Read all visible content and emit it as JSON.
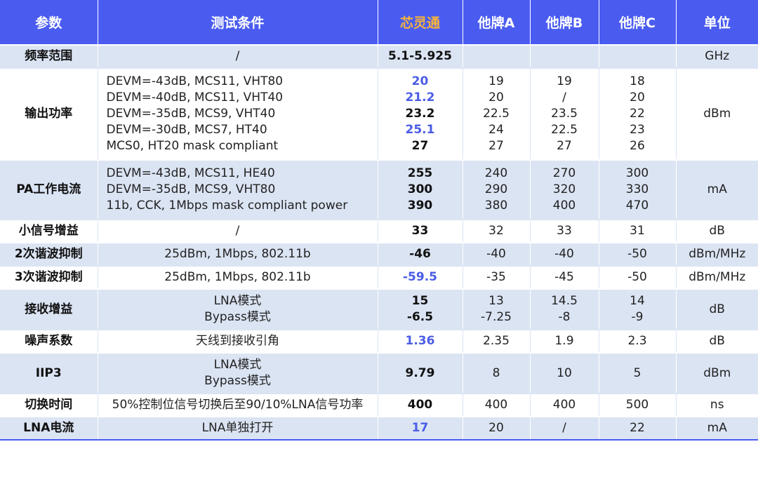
{
  "headers": [
    "参数",
    "测试条件",
    "芯灵通",
    "他牌A",
    "他牌B",
    "他牌C",
    "单位"
  ],
  "rows": [
    {
      "param": "频率范围",
      "cond": [
        "/"
      ],
      "ours": [
        {
          "v": "5.1-5.925",
          "blue": false
        }
      ],
      "a": [
        ""
      ],
      "b": [
        ""
      ],
      "c": [
        ""
      ],
      "unit": "GHz"
    },
    {
      "param": "输出功率",
      "cond": [
        "DEVM=-43dB, MCS11, VHT80",
        "DEVM=-40dB, MCS11, VHT40",
        "DEVM=-35dB, MCS9, VHT40",
        "DEVM=-30dB, MCS7, HT40",
        "MCS0, HT20 mask compliant"
      ],
      "ours": [
        {
          "v": "20",
          "blue": true
        },
        {
          "v": "21.2",
          "blue": true
        },
        {
          "v": "23.2",
          "blue": false
        },
        {
          "v": "25.1",
          "blue": true
        },
        {
          "v": "27",
          "blue": false
        }
      ],
      "a": [
        "19",
        "20",
        "22.5",
        "24",
        "27"
      ],
      "b": [
        "19",
        "/",
        "23.5",
        "22.5",
        "27"
      ],
      "c": [
        "18",
        "20",
        "22",
        "23",
        "26"
      ],
      "unit": "dBm"
    },
    {
      "param": "PA工作电流",
      "cond": [
        "DEVM=-43dB, MCS11, HE40",
        "DEVM=-35dB, MCS9, VHT80",
        "11b, CCK, 1Mbps mask compliant power"
      ],
      "ours": [
        {
          "v": "255",
          "blue": false
        },
        {
          "v": "300",
          "blue": false
        },
        {
          "v": "390",
          "blue": false
        }
      ],
      "a": [
        "240",
        "290",
        "380"
      ],
      "b": [
        "270",
        "320",
        "400"
      ],
      "c": [
        "300",
        "330",
        "470"
      ],
      "unit": "mA"
    },
    {
      "param": "小信号增益",
      "cond": [
        "/"
      ],
      "ours": [
        {
          "v": "33",
          "blue": false
        }
      ],
      "a": [
        "32"
      ],
      "b": [
        "33"
      ],
      "c": [
        "31"
      ],
      "unit": "dB"
    },
    {
      "param": "2次谐波抑制",
      "cond": [
        "25dBm, 1Mbps, 802.11b"
      ],
      "ours": [
        {
          "v": "-46",
          "blue": false
        }
      ],
      "a": [
        "-40"
      ],
      "b": [
        "-40"
      ],
      "c": [
        "-50"
      ],
      "unit": "dBm/MHz"
    },
    {
      "param": "3次谐波抑制",
      "cond": [
        "25dBm, 1Mbps, 802.11b"
      ],
      "ours": [
        {
          "v": "-59.5",
          "blue": true
        }
      ],
      "a": [
        "-35"
      ],
      "b": [
        "-45"
      ],
      "c": [
        "-50"
      ],
      "unit": "dBm/MHz"
    },
    {
      "param": "接收增益",
      "cond": [
        "LNA模式",
        "Bypass模式"
      ],
      "ours": [
        {
          "v": "15",
          "blue": false
        },
        {
          "v": "-6.5",
          "blue": false
        }
      ],
      "a": [
        "13",
        "-7.25"
      ],
      "b": [
        "14.5",
        "-8"
      ],
      "c": [
        "14",
        "-9"
      ],
      "unit": "dB"
    },
    {
      "param": "噪声系数",
      "cond": [
        "天线到接收引角"
      ],
      "ours": [
        {
          "v": "1.36",
          "blue": true
        }
      ],
      "a": [
        "2.35"
      ],
      "b": [
        "1.9"
      ],
      "c": [
        "2.3"
      ],
      "unit": "dB"
    },
    {
      "param": "IIP3",
      "cond": [
        "LNA模式",
        "Bypass模式"
      ],
      "ours": [
        {
          "v": "9.79",
          "blue": false
        }
      ],
      "a": [
        "8"
      ],
      "b": [
        "10"
      ],
      "c": [
        "5"
      ],
      "unit": "dBm"
    },
    {
      "param": "切换时间",
      "cond": [
        "50%控制位信号切换后至90/10%LNA信号功率"
      ],
      "ours": [
        {
          "v": "400",
          "blue": false
        }
      ],
      "a": [
        "400"
      ],
      "b": [
        "400"
      ],
      "c": [
        "500"
      ],
      "unit": "ns"
    },
    {
      "param": "LNA电流",
      "cond": [
        "LNA单独打开"
      ],
      "ours": [
        {
          "v": "17",
          "blue": true
        }
      ],
      "a": [
        "20"
      ],
      "b": [
        "/"
      ],
      "c": [
        "22"
      ],
      "unit": "mA"
    }
  ]
}
